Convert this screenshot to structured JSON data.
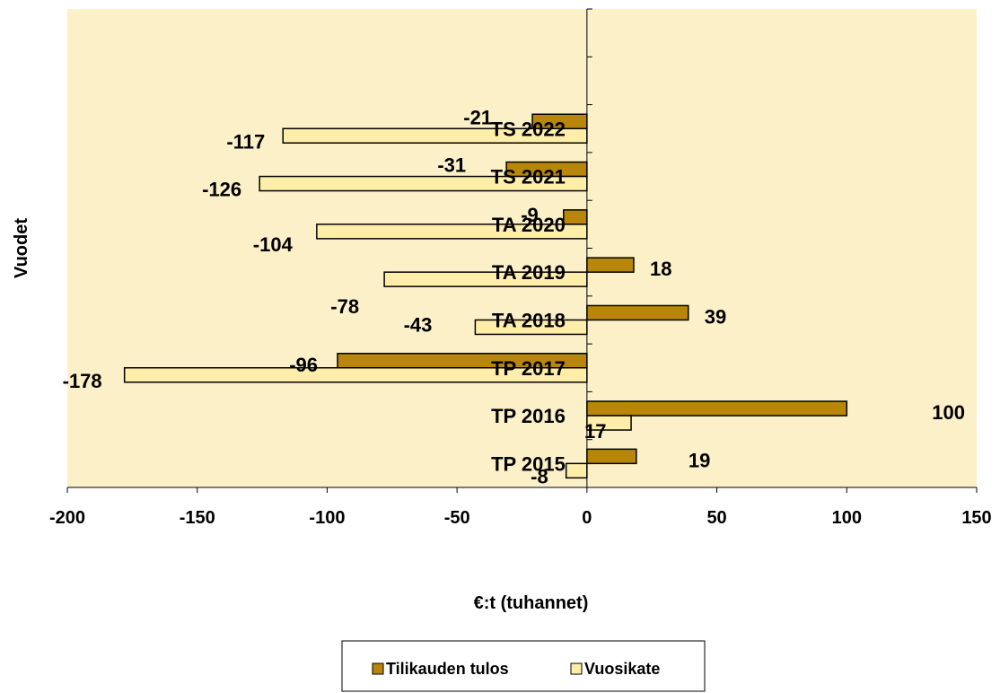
{
  "chart_data": {
    "type": "bar",
    "orientation": "horizontal",
    "categories": [
      "TP 2015",
      "TP 2016",
      "TP 2017",
      "TA 2018",
      "TA 2019",
      "TA 2020",
      "TS 2021",
      "TS 2022"
    ],
    "series": [
      {
        "name": "Tilikauden tulos",
        "values": [
          19,
          100,
          -96,
          39,
          18,
          -9,
          -31,
          -21
        ],
        "color": "#b8860b"
      },
      {
        "name": "Vuosikate",
        "values": [
          -8,
          17,
          -178,
          -43,
          -78,
          -104,
          -126,
          -117
        ],
        "color": "#ffeeaa"
      }
    ],
    "xlabel": "€:t (tuhannet)",
    "ylabel": "Vuodet",
    "xlim": [
      -200,
      150
    ],
    "xticks": [
      -200,
      -150,
      -100,
      -50,
      0,
      50,
      100,
      150
    ],
    "xtick_labels": [
      "-200",
      "-150",
      "-100",
      "-50",
      "0",
      "50",
      "100",
      "150"
    ],
    "grid": false,
    "legend": "bottom",
    "plot_background": "#fcf0c8",
    "data_labels": true
  }
}
